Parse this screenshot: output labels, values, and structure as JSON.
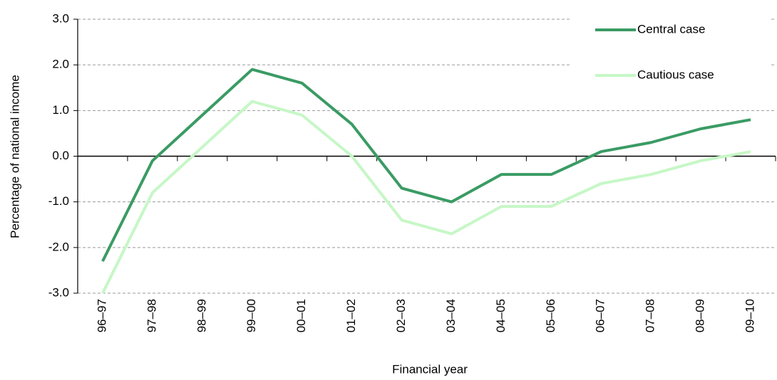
{
  "chart_data": {
    "type": "line",
    "x_label": "Financial year",
    "y_label": "Percentage of national income",
    "categories": [
      "96–97",
      "97–98",
      "98–99",
      "99–00",
      "00–01",
      "01–02",
      "02–03",
      "03–04",
      "04–05",
      "05–06",
      "06–07",
      "07–08",
      "08–09",
      "09–10"
    ],
    "series": [
      {
        "name": "Central case",
        "color": "#3a9b64",
        "values": [
          -2.3,
          -0.1,
          0.9,
          1.9,
          1.6,
          0.7,
          -0.7,
          -1.0,
          -0.4,
          -0.4,
          0.1,
          0.3,
          0.6,
          0.8
        ]
      },
      {
        "name": "Cautious case",
        "color": "#c6f7c6",
        "values": [
          -3.0,
          -0.8,
          0.2,
          1.2,
          0.9,
          0.0,
          -1.4,
          -1.7,
          -1.1,
          -1.1,
          -0.6,
          -0.4,
          -0.1,
          0.1
        ]
      }
    ],
    "ylim": [
      -3,
      3
    ],
    "yticks": [
      {
        "value": -3,
        "label": "-3.0"
      },
      {
        "value": -2,
        "label": "-2.0"
      },
      {
        "value": -1,
        "label": "-1.0"
      },
      {
        "value": 0,
        "label": "0.0"
      },
      {
        "value": 1,
        "label": "1.0"
      },
      {
        "value": 2,
        "label": "2.0"
      },
      {
        "value": 3,
        "label": "3.0"
      }
    ],
    "grid": true,
    "legend": "top-right"
  }
}
